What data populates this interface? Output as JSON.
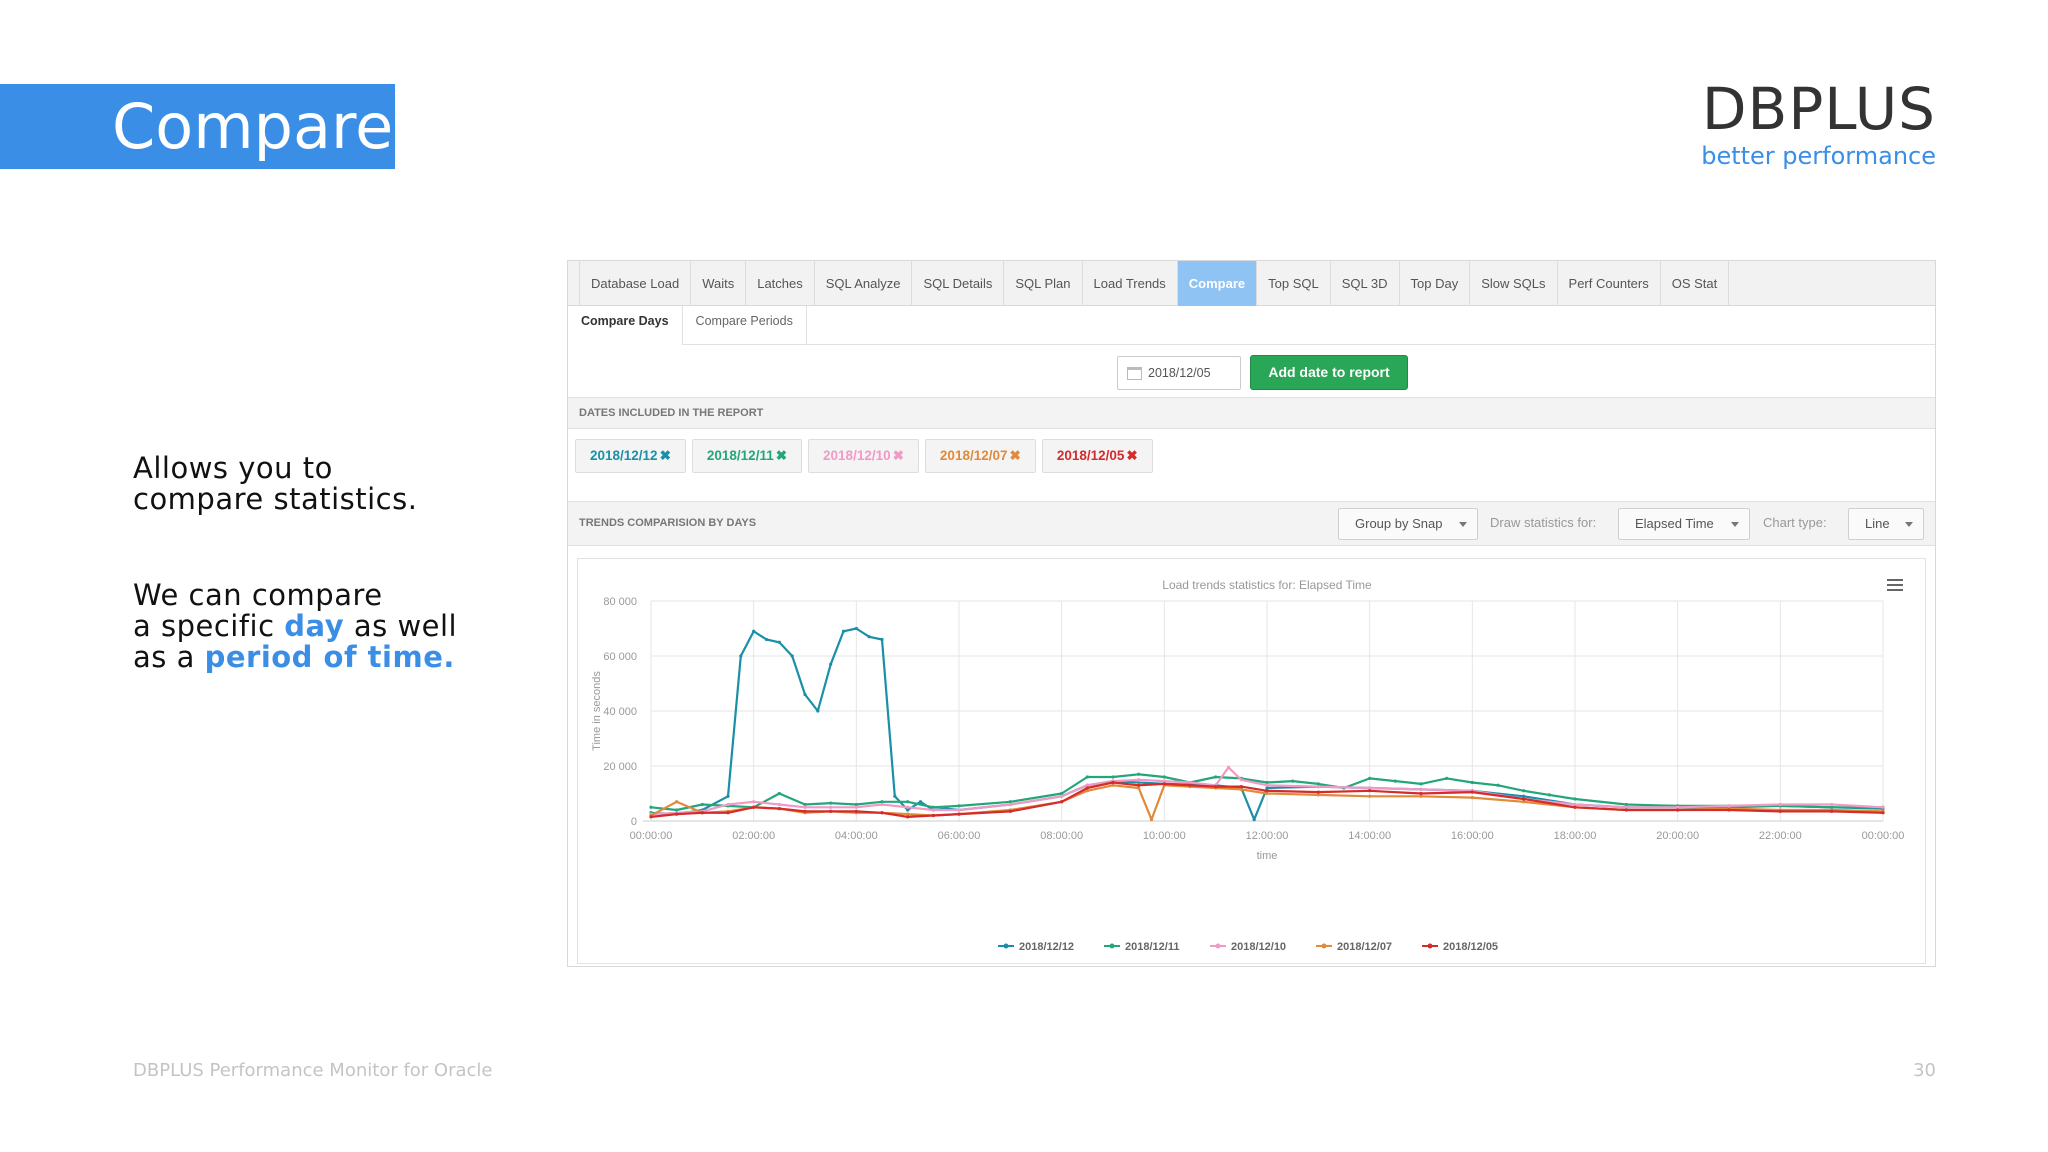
{
  "slide": {
    "title": "Compare",
    "logo_main": "DBPLUS",
    "logo_sub": "better performance",
    "desc1_line1": "Allows you to",
    "desc1_line2": "compare statistics.",
    "desc2_line1": "We can compare",
    "desc2_line2_a": "a specific ",
    "desc2_line2_b": "day",
    "desc2_line2_c": " as well",
    "desc2_line3_a": "as a ",
    "desc2_line3_b": "period of time.",
    "footer": "DBPLUS Performance Monitor for Oracle",
    "page_number": "30",
    "accent_color": "#3a8ee6"
  },
  "app": {
    "tabs": [
      {
        "label": "Database Load"
      },
      {
        "label": "Waits"
      },
      {
        "label": "Latches"
      },
      {
        "label": "SQL Analyze"
      },
      {
        "label": "SQL Details"
      },
      {
        "label": "SQL Plan"
      },
      {
        "label": "Load Trends"
      },
      {
        "label": "Compare",
        "active": true
      },
      {
        "label": "Top SQL"
      },
      {
        "label": "SQL 3D"
      },
      {
        "label": "Top Day"
      },
      {
        "label": "Slow SQLs"
      },
      {
        "label": "Perf Counters"
      },
      {
        "label": "OS Stat"
      }
    ],
    "subtabs": [
      {
        "label": "Compare Days",
        "active": true
      },
      {
        "label": "Compare Periods"
      }
    ],
    "date_input_value": "2018/12/05",
    "add_button_label": "Add date to report",
    "dates_header": "DATES INCLUDED IN THE REPORT",
    "date_chips": [
      {
        "label": "2018/12/12",
        "color": "#1a8fa8"
      },
      {
        "label": "2018/12/11",
        "color": "#22a67a"
      },
      {
        "label": "2018/12/10",
        "color": "#f09ac6"
      },
      {
        "label": "2018/12/07",
        "color": "#e08a3a"
      },
      {
        "label": "2018/12/05",
        "color": "#d42b2b"
      }
    ],
    "remove_mark": "✖",
    "trends_header": "TRENDS COMPARISION BY DAYS",
    "group_by_value": "Group by Snap",
    "draw_stats_label": "Draw statistics for:",
    "draw_stats_value": "Elapsed Time",
    "chart_type_label": "Chart type:",
    "chart_type_value": "Line"
  },
  "chart_data": {
    "type": "line",
    "title": "Load trends statistics for: Elapsed Time",
    "xlabel": "time",
    "ylabel": "Time in seconds",
    "x_unit": "hours",
    "xlim": [
      0,
      24
    ],
    "ylim": [
      0,
      80000
    ],
    "x_ticks": [
      "00:00:00",
      "02:00:00",
      "04:00:00",
      "06:00:00",
      "08:00:00",
      "10:00:00",
      "12:00:00",
      "14:00:00",
      "16:00:00",
      "18:00:00",
      "20:00:00",
      "22:00:00",
      "00:00:00"
    ],
    "y_ticks": [
      "0",
      "20 000",
      "40 000",
      "60 000",
      "80 000"
    ],
    "grid": true,
    "legend_position": "bottom",
    "series": [
      {
        "name": "2018/12/12",
        "color": "#1a8fa8",
        "x": [
          0,
          0.5,
          1,
          1.5,
          1.75,
          2,
          2.25,
          2.5,
          2.75,
          3,
          3.25,
          3.5,
          3.75,
          4,
          4.25,
          4.5,
          4.75,
          5,
          5.25,
          5.5,
          5.75,
          6,
          7,
          8,
          8.5,
          9,
          10,
          11,
          11.5,
          11.75,
          12,
          13,
          14,
          15,
          16,
          17,
          18,
          19,
          20,
          21,
          22,
          23,
          24
        ],
        "values": [
          3000,
          2500,
          4000,
          9000,
          60000,
          69000,
          66000,
          65000,
          60000,
          46000,
          40000,
          57000,
          69000,
          70000,
          67000,
          66000,
          9000,
          4000,
          7000,
          4000,
          4500,
          4000,
          6000,
          9000,
          13000,
          14500,
          13500,
          13000,
          12000,
          500,
          12000,
          12500,
          12000,
          11500,
          11000,
          9000,
          6000,
          5000,
          5000,
          5000,
          5500,
          5000,
          4500
        ]
      },
      {
        "name": "2018/12/11",
        "color": "#22a67a",
        "x": [
          0,
          0.5,
          1,
          1.5,
          2,
          2.5,
          3,
          3.5,
          4,
          4.5,
          5,
          5.5,
          6,
          7,
          8,
          8.5,
          9,
          9.5,
          10,
          10.5,
          11,
          11.5,
          12,
          12.5,
          13,
          13.5,
          14,
          14.5,
          15,
          15.5,
          16,
          16.5,
          17,
          17.5,
          18,
          19,
          20,
          21,
          22,
          23,
          24
        ],
        "values": [
          5000,
          4000,
          6000,
          5500,
          5000,
          10000,
          6000,
          6500,
          6000,
          7000,
          7000,
          5000,
          5500,
          7000,
          10000,
          16000,
          16000,
          17000,
          16000,
          14000,
          16000,
          15500,
          14000,
          14500,
          13500,
          12000,
          15500,
          14500,
          13500,
          15500,
          14000,
          13000,
          11000,
          9500,
          8000,
          6000,
          5500,
          5500,
          5500,
          5000,
          5000
        ]
      },
      {
        "name": "2018/12/10",
        "color": "#f09ac6",
        "x": [
          0,
          0.5,
          1,
          1.5,
          2,
          2.5,
          3,
          3.5,
          4,
          4.5,
          5,
          5.5,
          6,
          7,
          8,
          8.5,
          9,
          9.5,
          10,
          10.5,
          11,
          11.25,
          11.5,
          12,
          13,
          14,
          15,
          16,
          17,
          18,
          19,
          20,
          21,
          22,
          23,
          24
        ],
        "values": [
          2500,
          3000,
          3500,
          6000,
          7000,
          6000,
          5000,
          5000,
          5000,
          6000,
          5000,
          4000,
          4000,
          6000,
          9000,
          13000,
          14500,
          15000,
          14500,
          14000,
          13000,
          19500,
          15000,
          13000,
          12500,
          12000,
          11500,
          11000,
          8000,
          6000,
          5000,
          5000,
          5500,
          6000,
          6000,
          5000
        ]
      },
      {
        "name": "2018/12/07",
        "color": "#e08a3a",
        "x": [
          0,
          0.5,
          1,
          1.5,
          2,
          2.5,
          3,
          3.5,
          4,
          4.5,
          5,
          5.5,
          6,
          7,
          8,
          8.5,
          9,
          9.5,
          9.75,
          10,
          10.5,
          11,
          11.5,
          12,
          13,
          14,
          15,
          16,
          17,
          18,
          19,
          20,
          21,
          22,
          23,
          24
        ],
        "values": [
          2000,
          7000,
          3000,
          3500,
          5000,
          4500,
          3000,
          3500,
          3000,
          3000,
          2500,
          2000,
          2500,
          4000,
          7000,
          11000,
          13000,
          12000,
          500,
          13000,
          12500,
          12000,
          11500,
          10000,
          9500,
          9000,
          9000,
          8500,
          7000,
          5000,
          4000,
          4000,
          4500,
          4000,
          4000,
          3500
        ]
      },
      {
        "name": "2018/12/05",
        "color": "#d42b2b",
        "x": [
          0,
          0.5,
          1,
          1.5,
          2,
          2.5,
          3,
          3.5,
          4,
          4.5,
          5,
          5.5,
          6,
          7,
          8,
          8.5,
          9,
          9.5,
          10,
          10.5,
          11,
          11.5,
          12,
          13,
          14,
          15,
          16,
          17,
          18,
          19,
          20,
          21,
          22,
          23,
          24
        ],
        "values": [
          1500,
          2500,
          3000,
          3000,
          5000,
          4500,
          3500,
          3500,
          3500,
          3000,
          1500,
          2000,
          2500,
          3500,
          7000,
          12000,
          14000,
          13000,
          13500,
          13000,
          12500,
          12500,
          11000,
          10500,
          11000,
          10000,
          10500,
          8000,
          5000,
          4000,
          4000,
          4000,
          3500,
          3500,
          3000
        ]
      }
    ]
  }
}
